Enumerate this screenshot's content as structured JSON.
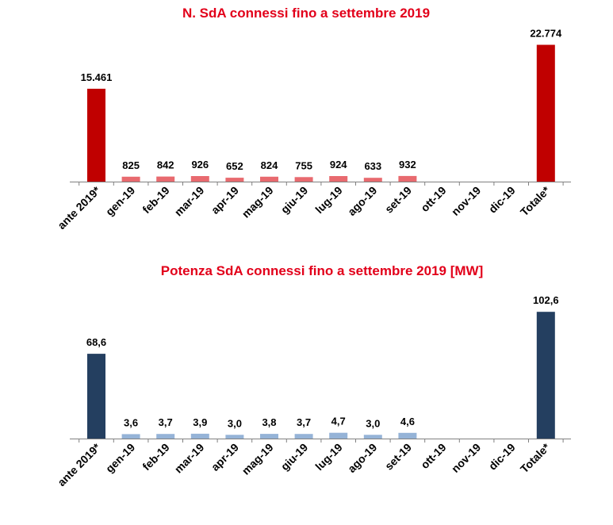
{
  "chart_data": [
    {
      "type": "bar",
      "title": "N. SdA connessi fino a settembre 2019",
      "categories": [
        "ante 2019*",
        "gen-19",
        "feb-19",
        "mar-19",
        "apr-19",
        "mag-19",
        "giu-19",
        "lug-19",
        "ago-19",
        "set-19",
        "ott-19",
        "nov-19",
        "dic-19",
        "Totale*"
      ],
      "values": [
        15461,
        825,
        842,
        926,
        652,
        824,
        755,
        924,
        633,
        932,
        null,
        null,
        null,
        22774
      ],
      "value_labels": [
        "15.461",
        "825",
        "842",
        "926",
        "652",
        "824",
        "755",
        "924",
        "633",
        "932",
        "",
        "",
        "",
        "22.774"
      ],
      "colors": {
        "main": "#c00000",
        "monthly": "#e86a6f",
        "title": "#e2001a"
      },
      "ylim": [
        0,
        23500
      ]
    },
    {
      "type": "bar",
      "title": "Potenza SdA connessi fino a settembre 2019 [MW]",
      "categories": [
        "ante 2019*",
        "gen-19",
        "feb-19",
        "mar-19",
        "apr-19",
        "mag-19",
        "giu-19",
        "lug-19",
        "ago-19",
        "set-19",
        "ott-19",
        "nov-19",
        "dic-19",
        "Totale*"
      ],
      "values": [
        68.6,
        3.6,
        3.7,
        3.9,
        3.0,
        3.8,
        3.7,
        4.7,
        3.0,
        4.6,
        null,
        null,
        null,
        102.6
      ],
      "value_labels": [
        "68,6",
        "3,6",
        "3,7",
        "3,9",
        "3,0",
        "3,8",
        "3,7",
        "4,7",
        "3,0",
        "4,6",
        "",
        "",
        "",
        "102,6"
      ],
      "colors": {
        "main": "#243f60",
        "monthly": "#95b3d7",
        "title": "#e2001a"
      },
      "ylim": [
        0,
        104
      ]
    }
  ]
}
